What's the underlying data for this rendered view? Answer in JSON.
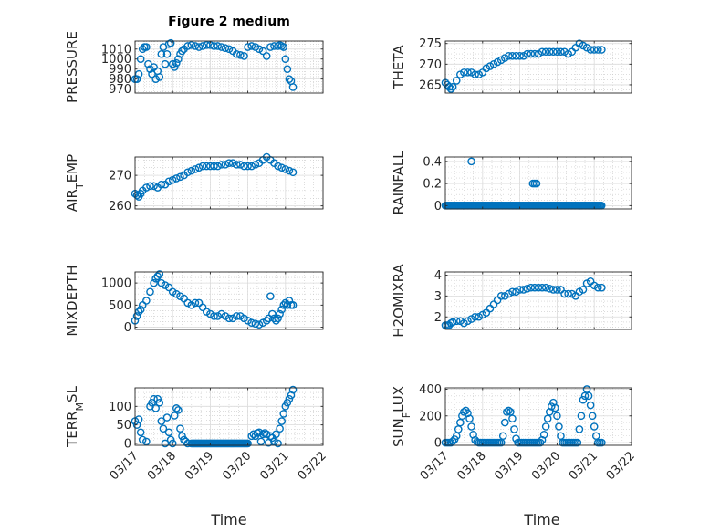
{
  "figure": {
    "title": "Figure 2 medium",
    "time_label": "Time",
    "marker_color": "#0072bd"
  },
  "chart_data": [
    {
      "type": "scatter",
      "ylabel": "PRESSURE",
      "ylim": [
        966,
        1018
      ],
      "yticks": [
        970,
        980,
        990,
        1000,
        1010
      ],
      "xlim": [
        0,
        5
      ],
      "x": [
        0.0,
        0.05,
        0.1,
        0.15,
        0.2,
        0.25,
        0.3,
        0.35,
        0.4,
        0.45,
        0.5,
        0.55,
        0.6,
        0.65,
        0.7,
        0.75,
        0.8,
        0.85,
        0.9,
        0.95,
        1.0,
        1.05,
        1.1,
        1.15,
        1.2,
        1.25,
        1.3,
        1.4,
        1.5,
        1.6,
        1.7,
        1.8,
        1.9,
        2.0,
        2.1,
        2.2,
        2.3,
        2.4,
        2.5,
        2.6,
        2.7,
        2.8,
        2.9,
        3.0,
        3.1,
        3.2,
        3.3,
        3.4,
        3.5,
        3.6,
        3.7,
        3.8,
        3.85,
        3.9,
        3.95,
        4.0,
        4.05,
        4.1,
        4.15,
        4.2
      ],
      "y": [
        980,
        980,
        985,
        1000,
        1010,
        1012,
        1012,
        995,
        990,
        985,
        992,
        980,
        988,
        982,
        1005,
        1012,
        995,
        1005,
        1015,
        1016,
        995,
        992,
        996,
        1000,
        1005,
        1008,
        1010,
        1013,
        1014,
        1013,
        1012,
        1013,
        1014,
        1014,
        1013,
        1013,
        1012,
        1011,
        1010,
        1008,
        1005,
        1004,
        1003,
        1012,
        1013,
        1012,
        1010,
        1008,
        1003,
        1012,
        1013,
        1013,
        1014,
        1013,
        1012,
        1000,
        990,
        980,
        978,
        972
      ]
    },
    {
      "type": "scatter",
      "ylabel": "THETA",
      "ylim": [
        263,
        275.6
      ],
      "yticks": [
        265,
        270,
        275
      ],
      "xlim": [
        0,
        5
      ],
      "x": [
        0.0,
        0.05,
        0.1,
        0.15,
        0.2,
        0.3,
        0.4,
        0.5,
        0.6,
        0.7,
        0.8,
        0.9,
        1.0,
        1.1,
        1.2,
        1.3,
        1.4,
        1.5,
        1.6,
        1.7,
        1.8,
        1.9,
        2.0,
        2.1,
        2.2,
        2.3,
        2.4,
        2.5,
        2.6,
        2.7,
        2.8,
        2.9,
        3.0,
        3.1,
        3.2,
        3.3,
        3.4,
        3.5,
        3.6,
        3.7,
        3.8,
        3.9,
        4.0,
        4.1,
        4.2
      ],
      "y": [
        265.5,
        265,
        264.5,
        264,
        264.5,
        266,
        267.5,
        268,
        268,
        268,
        267.5,
        267.5,
        268,
        269,
        269.5,
        270,
        270.5,
        271,
        271.5,
        272,
        272,
        272,
        272,
        272,
        272.5,
        272.5,
        272.5,
        272.5,
        273,
        273,
        273,
        273,
        273,
        273,
        273,
        272.5,
        273,
        274,
        275,
        274.5,
        274,
        273.5,
        273.5,
        273.5,
        273.5
      ]
    },
    {
      "type": "scatter",
      "ylabel": "AIRTEMP",
      "ylabel_parts": [
        "AIR",
        "T",
        "EMP"
      ],
      "ylim": [
        259,
        276
      ],
      "yticks": [
        260,
        270
      ],
      "xlim": [
        0,
        5
      ],
      "x": [
        0.0,
        0.05,
        0.1,
        0.15,
        0.2,
        0.3,
        0.4,
        0.5,
        0.6,
        0.7,
        0.8,
        0.9,
        1.0,
        1.1,
        1.2,
        1.3,
        1.4,
        1.5,
        1.6,
        1.7,
        1.8,
        1.9,
        2.0,
        2.1,
        2.2,
        2.3,
        2.4,
        2.5,
        2.6,
        2.7,
        2.8,
        2.9,
        3.0,
        3.1,
        3.2,
        3.3,
        3.4,
        3.5,
        3.6,
        3.7,
        3.8,
        3.9,
        4.0,
        4.1,
        4.2
      ],
      "y": [
        264,
        263.5,
        263,
        264,
        265,
        266,
        266.5,
        266.5,
        266,
        267,
        267,
        268,
        268.5,
        269,
        269.5,
        270,
        271,
        271.5,
        272,
        272.5,
        273,
        273,
        273,
        273,
        273,
        273.5,
        273.5,
        274,
        274,
        273.5,
        273.5,
        273,
        273,
        273,
        273.5,
        274,
        275,
        276,
        275,
        274,
        273,
        272.5,
        272,
        271.5,
        271
      ]
    },
    {
      "type": "scatter",
      "ylabel": "RAINFALL",
      "ylim": [
        -0.03,
        0.44
      ],
      "yticks": [
        0,
        0.2,
        0.4
      ],
      "ytick_labels": [
        "0",
        "0.2",
        "0.4"
      ],
      "xlim": [
        0,
        5
      ],
      "zero_run": [
        0,
        4.2,
        0.0333
      ],
      "x": [
        0.7,
        2.35,
        2.4,
        2.45
      ],
      "y": [
        0.4,
        0.2,
        0.2,
        0.2
      ]
    },
    {
      "type": "scatter",
      "ylabel": "MIXDEPTH",
      "ylim": [
        -50,
        1250
      ],
      "yticks": [
        0,
        500,
        1000
      ],
      "xlim": [
        0,
        5
      ],
      "x": [
        0.0,
        0.05,
        0.1,
        0.15,
        0.2,
        0.3,
        0.4,
        0.5,
        0.55,
        0.6,
        0.65,
        0.7,
        0.8,
        0.9,
        1.0,
        1.1,
        1.2,
        1.3,
        1.4,
        1.5,
        1.6,
        1.7,
        1.8,
        1.9,
        2.0,
        2.1,
        2.2,
        2.3,
        2.4,
        2.5,
        2.6,
        2.7,
        2.8,
        2.9,
        3.0,
        3.1,
        3.2,
        3.3,
        3.4,
        3.5,
        3.55,
        3.6,
        3.65,
        3.7,
        3.75,
        3.8,
        3.85,
        3.9,
        3.95,
        4.0,
        4.05,
        4.1,
        4.15,
        4.2
      ],
      "y": [
        150,
        250,
        350,
        400,
        500,
        600,
        800,
        1000,
        1100,
        1150,
        1200,
        1000,
        950,
        900,
        800,
        750,
        700,
        650,
        550,
        500,
        550,
        550,
        450,
        350,
        300,
        250,
        250,
        300,
        250,
        200,
        200,
        250,
        250,
        200,
        150,
        100,
        80,
        60,
        100,
        150,
        200,
        700,
        300,
        200,
        150,
        200,
        300,
        400,
        500,
        550,
        500,
        600,
        500,
        500
      ]
    },
    {
      "type": "scatter",
      "ylabel": "H2OMIXRA",
      "ylim": [
        1.4,
        4.15
      ],
      "yticks": [
        2,
        3,
        4
      ],
      "xlim": [
        0,
        5
      ],
      "x": [
        0.0,
        0.05,
        0.1,
        0.15,
        0.2,
        0.3,
        0.4,
        0.5,
        0.6,
        0.7,
        0.8,
        0.9,
        1.0,
        1.1,
        1.2,
        1.3,
        1.4,
        1.5,
        1.6,
        1.7,
        1.8,
        1.9,
        2.0,
        2.1,
        2.2,
        2.3,
        2.4,
        2.5,
        2.6,
        2.7,
        2.8,
        2.9,
        3.0,
        3.1,
        3.2,
        3.3,
        3.4,
        3.5,
        3.6,
        3.7,
        3.8,
        3.9,
        4.0,
        4.1,
        4.2
      ],
      "y": [
        1.6,
        1.6,
        1.6,
        1.7,
        1.75,
        1.8,
        1.8,
        1.7,
        1.8,
        1.9,
        2.0,
        2.0,
        2.1,
        2.2,
        2.4,
        2.6,
        2.8,
        3.0,
        3.0,
        3.1,
        3.2,
        3.2,
        3.3,
        3.3,
        3.35,
        3.4,
        3.4,
        3.4,
        3.4,
        3.4,
        3.35,
        3.3,
        3.3,
        3.3,
        3.1,
        3.1,
        3.1,
        3.0,
        3.2,
        3.3,
        3.6,
        3.7,
        3.5,
        3.4,
        3.4
      ]
    },
    {
      "type": "scatter",
      "ylabel": "TERRMSL",
      "ylabel_parts": [
        "TERR",
        "M",
        "SL"
      ],
      "ylim": [
        -5,
        150
      ],
      "yticks": [
        0,
        50,
        100
      ],
      "xlim": [
        0,
        5
      ],
      "zero_run": [
        1.5,
        3.0,
        0.0333
      ],
      "x": [
        0.0,
        0.05,
        0.1,
        0.15,
        0.2,
        0.3,
        0.4,
        0.45,
        0.5,
        0.55,
        0.6,
        0.65,
        0.7,
        0.75,
        0.8,
        0.85,
        0.9,
        0.95,
        1.0,
        1.05,
        1.1,
        1.15,
        1.2,
        1.25,
        1.3,
        1.35,
        1.4,
        3.1,
        3.15,
        3.2,
        3.25,
        3.3,
        3.35,
        3.4,
        3.45,
        3.5,
        3.55,
        3.6,
        3.65,
        3.7,
        3.75,
        3.8,
        3.85,
        3.9,
        3.95,
        4.0,
        4.05,
        4.1,
        4.15,
        4.2
      ],
      "y": [
        60,
        50,
        65,
        30,
        10,
        5,
        100,
        110,
        120,
        95,
        120,
        110,
        60,
        40,
        0,
        70,
        30,
        10,
        0,
        75,
        95,
        90,
        40,
        20,
        10,
        5,
        0,
        20,
        25,
        20,
        28,
        30,
        5,
        25,
        28,
        25,
        2,
        20,
        15,
        5,
        25,
        0,
        40,
        60,
        80,
        100,
        110,
        120,
        130,
        145
      ]
    },
    {
      "type": "scatter",
      "ylabel": "SUNFLUX",
      "ylabel_parts": [
        "SUN",
        "F",
        "LUX"
      ],
      "ylim": [
        -20,
        410
      ],
      "yticks": [
        0,
        200,
        400
      ],
      "xlim": [
        0,
        5
      ],
      "x": [
        0.0,
        0.05,
        0.1,
        0.15,
        0.2,
        0.25,
        0.3,
        0.35,
        0.4,
        0.45,
        0.5,
        0.55,
        0.6,
        0.65,
        0.7,
        0.75,
        0.8,
        0.85,
        0.9,
        0.95,
        1.0,
        1.05,
        1.1,
        1.15,
        1.2,
        1.25,
        1.3,
        1.35,
        1.4,
        1.45,
        1.5,
        1.55,
        1.6,
        1.65,
        1.7,
        1.75,
        1.8,
        1.85,
        1.9,
        1.95,
        2.0,
        2.05,
        2.1,
        2.15,
        2.2,
        2.25,
        2.3,
        2.35,
        2.4,
        2.45,
        2.5,
        2.55,
        2.6,
        2.65,
        2.7,
        2.75,
        2.8,
        2.85,
        2.9,
        2.95,
        3.0,
        3.05,
        3.1,
        3.15,
        3.2,
        3.25,
        3.3,
        3.35,
        3.4,
        3.45,
        3.5,
        3.55,
        3.6,
        3.65,
        3.7,
        3.75,
        3.8,
        3.85,
        3.9,
        3.95,
        4.0,
        4.05,
        4.1,
        4.15,
        4.2
      ],
      "y": [
        0,
        0,
        0,
        0,
        10,
        25,
        50,
        100,
        150,
        200,
        230,
        240,
        220,
        180,
        120,
        60,
        20,
        5,
        0,
        0,
        0,
        0,
        0,
        0,
        0,
        0,
        0,
        0,
        0,
        0,
        0,
        50,
        150,
        230,
        240,
        230,
        180,
        100,
        30,
        0,
        0,
        0,
        0,
        0,
        0,
        0,
        0,
        0,
        0,
        0,
        0,
        0,
        20,
        60,
        120,
        180,
        230,
        270,
        300,
        260,
        200,
        120,
        50,
        0,
        0,
        0,
        0,
        0,
        0,
        0,
        0,
        0,
        100,
        200,
        320,
        350,
        400,
        350,
        280,
        200,
        120,
        50,
        0,
        0,
        0
      ]
    }
  ],
  "x_axis": {
    "ticks": [
      0,
      1,
      2,
      3,
      4,
      5
    ],
    "tick_labels": [
      "03/17",
      "03/18",
      "03/19",
      "03/20",
      "03/21",
      "03/22"
    ]
  }
}
